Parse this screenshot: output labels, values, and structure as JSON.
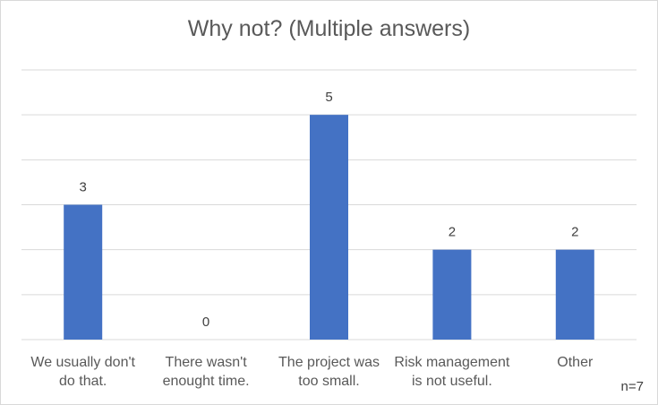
{
  "chart_data": {
    "type": "bar",
    "title": "Why not? (Multiple answers)",
    "categories": [
      "We usually don't\ndo that.",
      "There wasn't\nenought time.",
      "The project was\ntoo small.",
      "Risk management\nis not useful.",
      "Other"
    ],
    "values": [
      3,
      0,
      5,
      2,
      2
    ],
    "data_labels": [
      "3",
      "0",
      "5",
      "2",
      "2"
    ],
    "ylim": [
      0,
      6
    ],
    "grid": true,
    "bar_color": "#4472c4",
    "xlabel": "",
    "ylabel": ""
  },
  "note": "n=7"
}
